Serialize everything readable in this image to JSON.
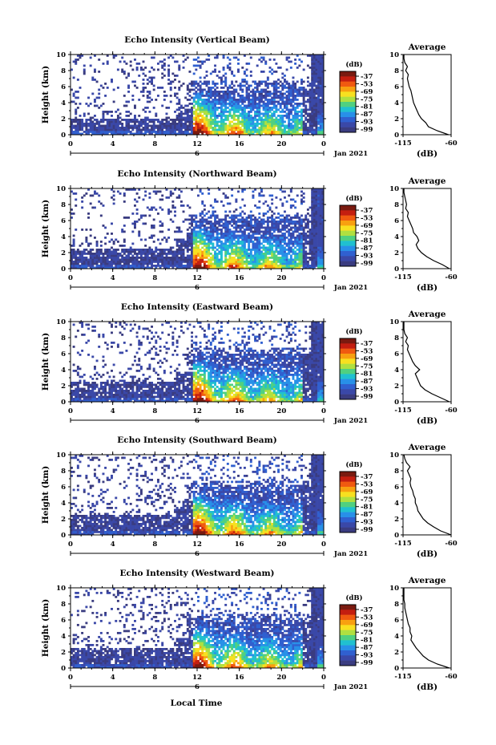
{
  "figure": {
    "xlabel": "Local Time",
    "date_label": "Jan 2021",
    "day_marker": "6"
  },
  "colorbar": {
    "unit": "(dB)",
    "levels": [
      "-37",
      "-53",
      "-69",
      "-75",
      "-81",
      "-87",
      "-93",
      "-99"
    ],
    "colors": [
      "#7a1a10",
      "#c41e10",
      "#f05a10",
      "#f8a010",
      "#f8e020",
      "#b0e040",
      "#50d080",
      "#20c0d0",
      "#2890e8",
      "#3060d0",
      "#3a48a8",
      "#3a3c80"
    ]
  },
  "chart_data": [
    {
      "type": "heatmap",
      "title": "Echo Intensity (Vertical Beam)",
      "beam": "vertical",
      "xlabel": "Local Time",
      "ylabel": "Height (km)",
      "xlim": [
        0,
        24
      ],
      "ylim": [
        0,
        10
      ],
      "x_ticks": [
        "0",
        "4",
        "8",
        "12",
        "16",
        "20",
        "0"
      ],
      "y_ticks": [
        "0",
        "2",
        "4",
        "6",
        "8",
        "10"
      ],
      "profile": {
        "title": "Average",
        "xlabel": "(dB)",
        "xlim": [
          -115,
          -60
        ],
        "x_ticks": [
          "-115",
          "-60"
        ],
        "heights": [
          0,
          0.5,
          1,
          1.5,
          2,
          2.5,
          3,
          3.5,
          4,
          4.5,
          5,
          5.5,
          6,
          6.5,
          7,
          7.5,
          8,
          8.5,
          9,
          9.5,
          10
        ],
        "values": [
          -63,
          -76,
          -86,
          -89,
          -94,
          -97,
          -99,
          -101,
          -103,
          -104,
          -105,
          -106,
          -108,
          -109,
          -110,
          -109,
          -112,
          -110,
          -113,
          -114,
          -114
        ]
      }
    },
    {
      "type": "heatmap",
      "title": "Echo Intensity (Northward Beam)",
      "beam": "north",
      "xlabel": "Local Time",
      "ylabel": "Height (km)",
      "xlim": [
        0,
        24
      ],
      "ylim": [
        0,
        10
      ],
      "x_ticks": [
        "0",
        "4",
        "8",
        "12",
        "16",
        "20",
        "0"
      ],
      "y_ticks": [
        "0",
        "2",
        "4",
        "6",
        "8",
        "10"
      ],
      "profile": {
        "title": "Average",
        "xlabel": "(dB)",
        "xlim": [
          -115,
          -60
        ],
        "x_ticks": [
          "-115",
          "-60"
        ],
        "heights": [
          0,
          0.5,
          1,
          1.5,
          2,
          2.5,
          3,
          3.5,
          4,
          4.5,
          5,
          5.5,
          6,
          6.5,
          7,
          7.5,
          8,
          8.5,
          9,
          9.5,
          10
        ],
        "values": [
          -62,
          -70,
          -80,
          -88,
          -94,
          -98,
          -100,
          -97,
          -99,
          -103,
          -104,
          -106,
          -108,
          -110,
          -109,
          -112,
          -111,
          -112,
          -113,
          -114,
          -114
        ]
      }
    },
    {
      "type": "heatmap",
      "title": "Echo Intensity (Eastward Beam)",
      "beam": "east",
      "xlabel": "Local Time",
      "ylabel": "Height (km)",
      "xlim": [
        0,
        24
      ],
      "ylim": [
        0,
        10
      ],
      "x_ticks": [
        "0",
        "4",
        "8",
        "12",
        "16",
        "20",
        "0"
      ],
      "y_ticks": [
        "0",
        "2",
        "4",
        "6",
        "8",
        "10"
      ],
      "profile": {
        "title": "Average",
        "xlabel": "(dB)",
        "xlim": [
          -115,
          -60
        ],
        "x_ticks": [
          "-115",
          "-60"
        ],
        "heights": [
          0,
          0.5,
          1,
          1.5,
          2,
          2.5,
          3,
          3.5,
          4,
          4.5,
          5,
          5.5,
          6,
          6.5,
          7,
          7.5,
          8,
          8.5,
          9,
          9.5,
          10
        ],
        "values": [
          -62,
          -72,
          -82,
          -90,
          -95,
          -97,
          -99,
          -101,
          -96,
          -101,
          -104,
          -106,
          -108,
          -110,
          -109,
          -112,
          -110,
          -113,
          -114,
          -114,
          -114
        ]
      }
    },
    {
      "type": "heatmap",
      "title": "Echo Intensity (Southward Beam)",
      "beam": "south",
      "xlabel": "Local Time",
      "ylabel": "Height (km)",
      "xlim": [
        0,
        24
      ],
      "ylim": [
        0,
        10
      ],
      "x_ticks": [
        "0",
        "4",
        "8",
        "12",
        "16",
        "20",
        "0"
      ],
      "y_ticks": [
        "0",
        "2",
        "4",
        "6",
        "8",
        "10"
      ],
      "profile": {
        "title": "Average",
        "xlabel": "(dB)",
        "xlim": [
          -115,
          -60
        ],
        "x_ticks": [
          "-115",
          "-60"
        ],
        "heights": [
          0,
          0.5,
          1,
          1.5,
          2,
          2.5,
          3,
          3.5,
          4,
          4.5,
          5,
          5.5,
          6,
          6.5,
          7,
          7.5,
          8,
          8.5,
          9,
          9.5,
          10
        ],
        "values": [
          -60,
          -72,
          -80,
          -87,
          -92,
          -95,
          -98,
          -99,
          -101,
          -101,
          -103,
          -104,
          -106,
          -107,
          -106,
          -108,
          -110,
          -107,
          -111,
          -113,
          -114
        ]
      }
    },
    {
      "type": "heatmap",
      "title": "Echo Intensity (Westward Beam)",
      "beam": "west",
      "xlabel": "Local Time",
      "ylabel": "Height (km)",
      "xlim": [
        0,
        24
      ],
      "ylim": [
        0,
        10
      ],
      "x_ticks": [
        "0",
        "4",
        "8",
        "12",
        "16",
        "20",
        "0"
      ],
      "y_ticks": [
        "0",
        "2",
        "4",
        "6",
        "8",
        "10"
      ],
      "profile": {
        "title": "Average",
        "xlabel": "(dB)",
        "xlim": [
          -115,
          -60
        ],
        "x_ticks": [
          "-115",
          "-60"
        ],
        "heights": [
          0,
          0.5,
          1,
          1.5,
          2,
          2.5,
          3,
          3.5,
          4,
          4.5,
          5,
          5.5,
          6,
          6.5,
          7,
          7.5,
          8,
          8.5,
          9,
          9.5,
          10
        ],
        "values": [
          -62,
          -76,
          -86,
          -92,
          -96,
          -100,
          -103,
          -106,
          -105,
          -107,
          -107,
          -109,
          -110,
          -111,
          -112,
          -113,
          -113,
          -114,
          -114,
          -114,
          -114
        ]
      }
    }
  ]
}
